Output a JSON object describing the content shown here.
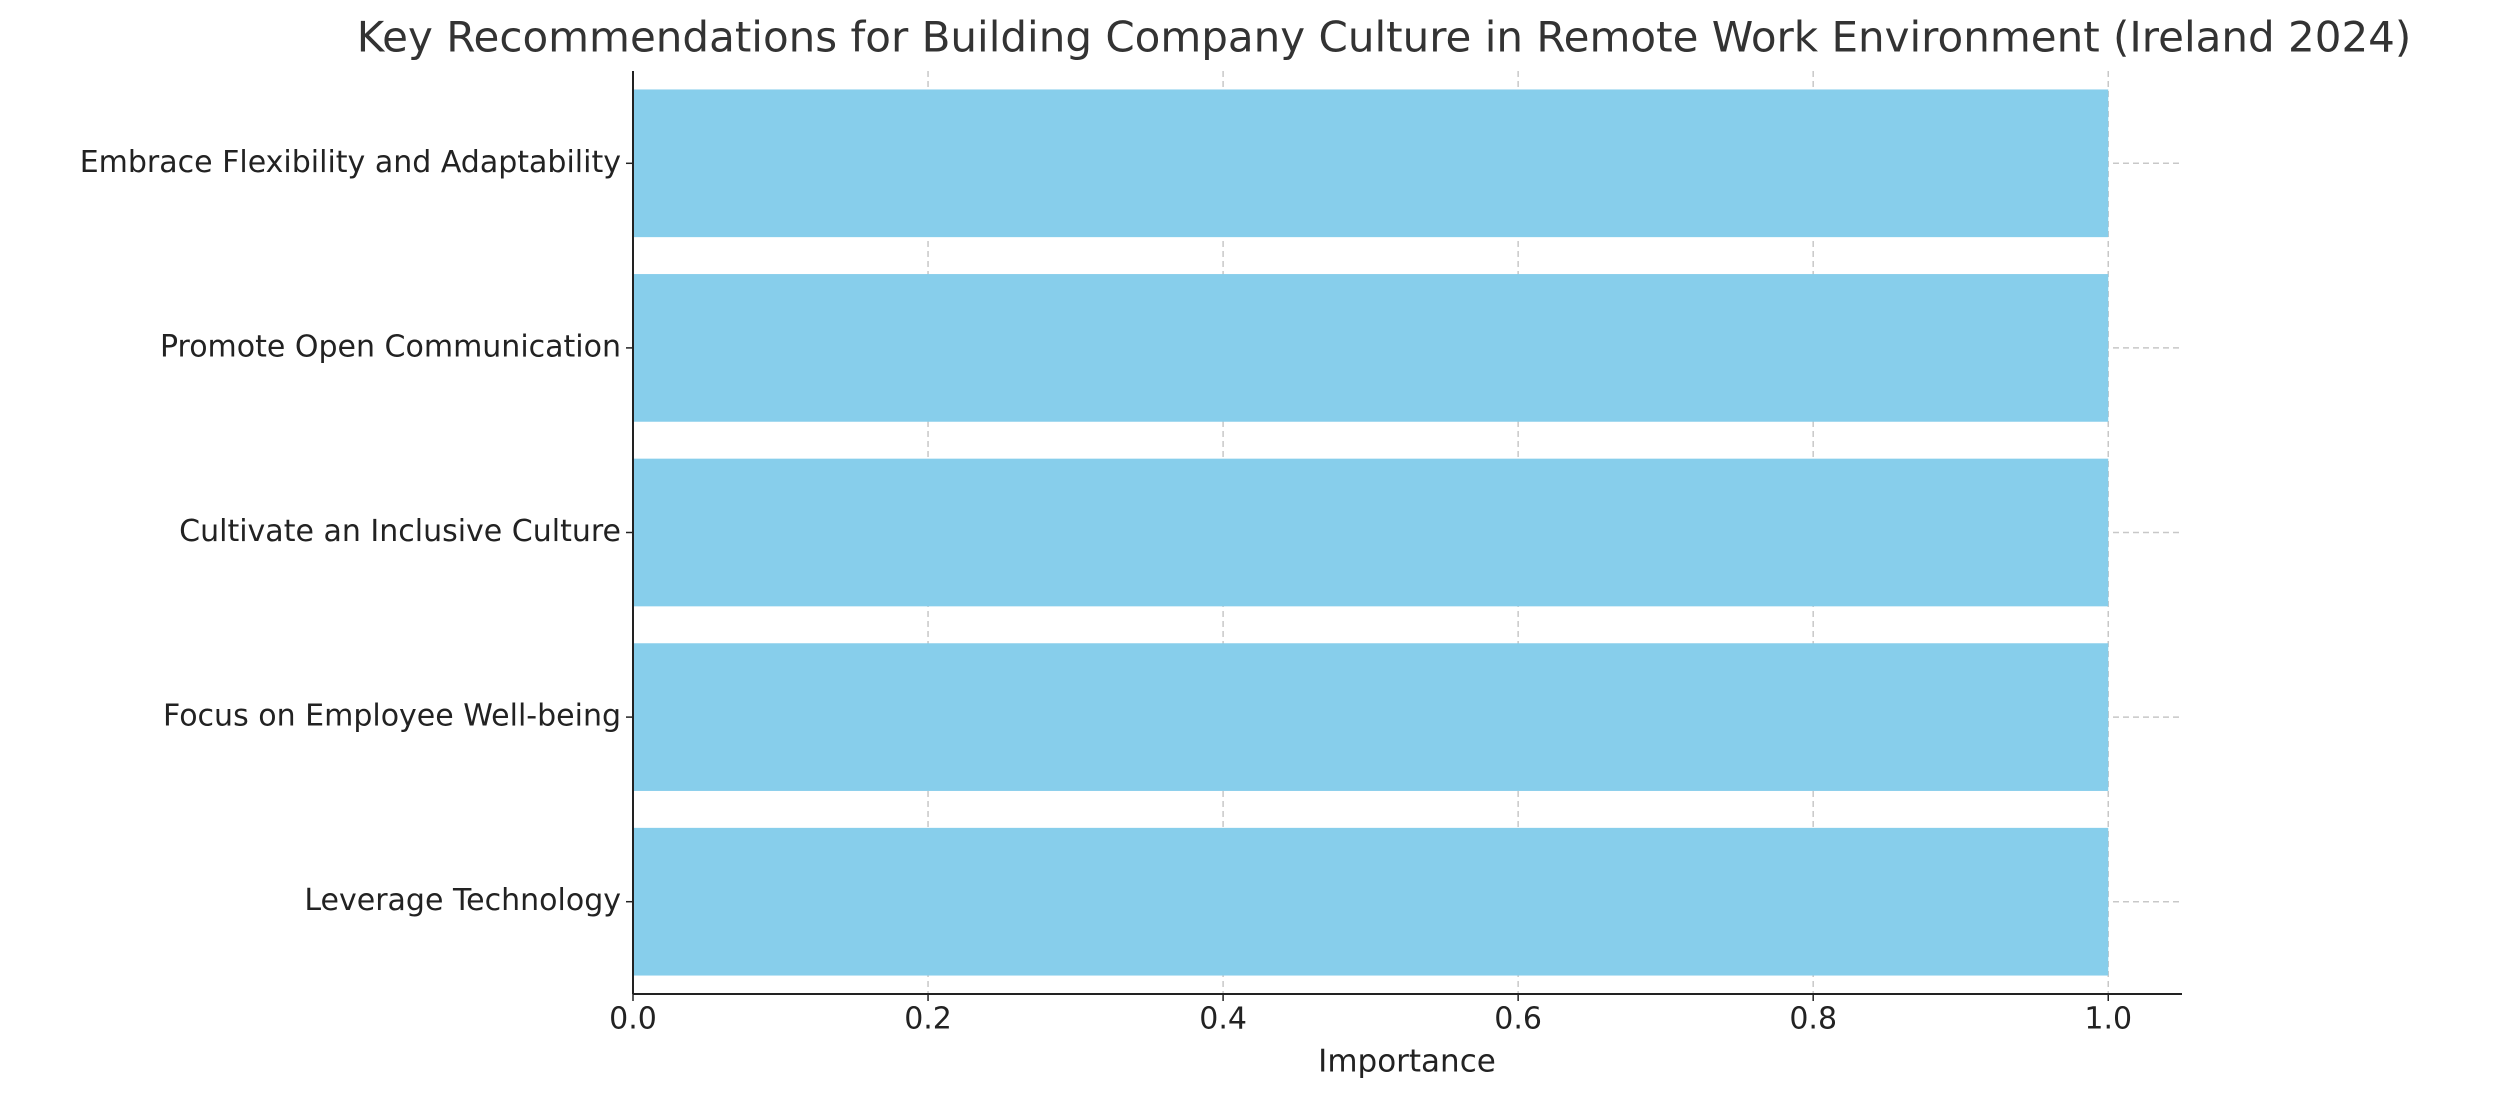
{
  "chart_data": {
    "type": "barh",
    "title": "Key Recommendations for Building Company Culture in Remote Work Environment (Ireland 2024)",
    "xlabel": "Importance",
    "categories": [
      "Embrace Flexibility and Adaptability",
      "Promote Open Communication",
      "Cultivate an Inclusive Culture",
      "Focus on Employee Well-being",
      "Leverage Technology"
    ],
    "values": [
      1,
      1,
      1,
      1,
      1
    ],
    "color": "#87ceeb",
    "xlim": [
      0,
      1.05
    ],
    "xticks": [
      {
        "value": 0,
        "label": "0.0"
      },
      0.2,
      0.4,
      0.6,
      0.8,
      {
        "value": 1,
        "label": "1.0"
      }
    ],
    "grid": true
  }
}
